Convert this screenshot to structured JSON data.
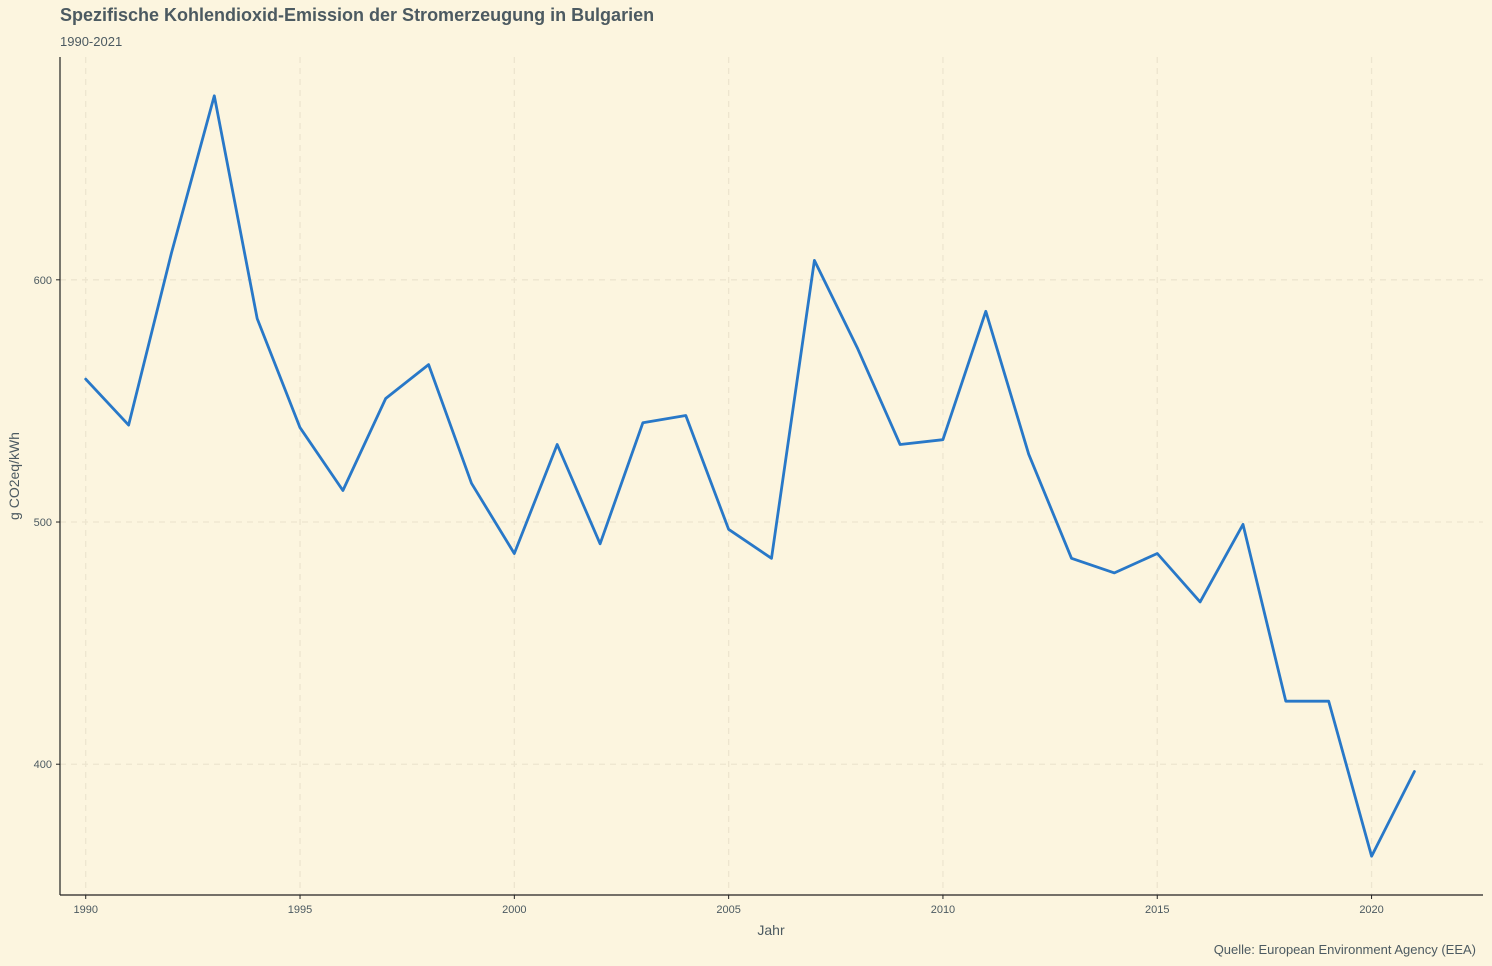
{
  "chart_data": {
    "type": "line",
    "title": "Spezifische Kohlendioxid-Emission der Stromerzeugung in Bulgarien",
    "subtitle": "1990-2021",
    "caption": "Quelle: European Environment Agency (EEA)",
    "xlabel": "Jahr",
    "ylabel": "g CO2eq/kWh",
    "x": [
      1990,
      1991,
      1992,
      1993,
      1994,
      1995,
      1996,
      1997,
      1998,
      1999,
      2000,
      2001,
      2002,
      2003,
      2004,
      2005,
      2006,
      2007,
      2008,
      2009,
      2010,
      2011,
      2012,
      2013,
      2014,
      2015,
      2016,
      2017,
      2018,
      2019,
      2020,
      2021
    ],
    "series": [
      {
        "values": [
          559,
          540,
          611,
          676,
          584,
          539,
          513,
          551,
          565,
          516,
          487,
          532,
          491,
          541,
          544,
          497,
          485,
          608,
          572,
          532,
          534,
          587,
          528,
          485,
          479,
          487,
          467,
          499,
          426,
          426,
          362,
          397
        ],
        "color": "#2878c8"
      }
    ],
    "xlim": [
      1989.4,
      2022.6
    ],
    "ylim": [
      346,
      692
    ],
    "x_ticks": [
      1990,
      1995,
      2000,
      2005,
      2010,
      2015,
      2020
    ],
    "y_ticks": [
      400,
      500,
      600
    ],
    "grid": true,
    "legend": "none"
  }
}
